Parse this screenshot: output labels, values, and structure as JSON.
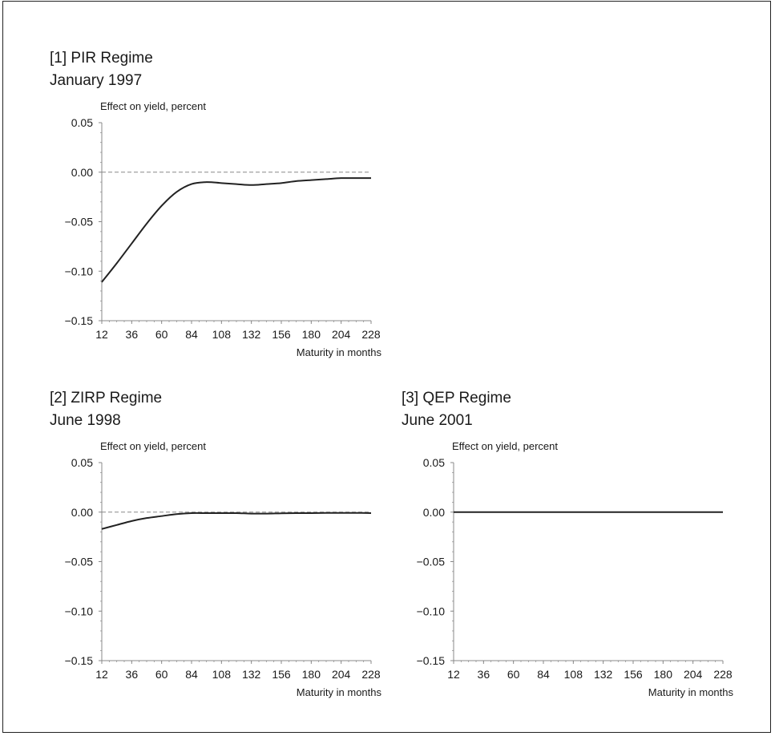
{
  "chart_data": [
    {
      "type": "line",
      "title": "[1] PIR Regime",
      "subtitle": "January 1997",
      "ylabel": "Effect on yield, percent",
      "xlabel": "Maturity in months",
      "xticks": [
        12,
        36,
        60,
        84,
        108,
        132,
        156,
        180,
        204,
        228
      ],
      "xtick_labels": [
        "12",
        "36",
        "60",
        "84",
        "108",
        "132",
        "156",
        "180",
        "204",
        "228"
      ],
      "yticks": [
        0.05,
        0.0,
        -0.05,
        -0.1,
        -0.15
      ],
      "ytick_labels": [
        "0.05",
        "0.00",
        "−0.05",
        "−0.10",
        "−0.15"
      ],
      "xlim": [
        12,
        228
      ],
      "ylim": [
        -0.15,
        0.05
      ],
      "zero_line": "dashed",
      "grid": false,
      "series": [
        {
          "x": [
            12,
            24,
            36,
            48,
            60,
            72,
            84,
            96,
            108,
            120,
            132,
            144,
            156,
            168,
            180,
            192,
            204,
            216,
            228
          ],
          "y": [
            -0.111,
            -0.092,
            -0.072,
            -0.052,
            -0.034,
            -0.02,
            -0.012,
            -0.01,
            -0.011,
            -0.012,
            -0.013,
            -0.012,
            -0.011,
            -0.009,
            -0.008,
            -0.007,
            -0.006,
            -0.006,
            -0.006
          ]
        }
      ]
    },
    {
      "type": "line",
      "title": "[2] ZIRP Regime",
      "subtitle": "June 1998",
      "ylabel": "Effect on yield, percent",
      "xlabel": "Maturity in months",
      "xticks": [
        12,
        36,
        60,
        84,
        108,
        132,
        156,
        180,
        204,
        228
      ],
      "xtick_labels": [
        "12",
        "36",
        "60",
        "84",
        "108",
        "132",
        "156",
        "180",
        "204",
        "228"
      ],
      "yticks": [
        0.05,
        0.0,
        -0.05,
        -0.1,
        -0.15
      ],
      "ytick_labels": [
        "0.05",
        "0.00",
        "−0.05",
        "−0.10",
        "−0.15"
      ],
      "xlim": [
        12,
        228
      ],
      "ylim": [
        -0.15,
        0.05
      ],
      "zero_line": "dashed",
      "grid": false,
      "series": [
        {
          "x": [
            12,
            24,
            36,
            48,
            60,
            72,
            84,
            96,
            108,
            120,
            132,
            144,
            156,
            168,
            180,
            192,
            204,
            216,
            228
          ],
          "y": [
            -0.017,
            -0.013,
            -0.009,
            -0.006,
            -0.004,
            -0.002,
            -0.001,
            -0.001,
            -0.001,
            -0.001,
            -0.0015,
            -0.0015,
            -0.0012,
            -0.001,
            -0.001,
            -0.0008,
            -0.0008,
            -0.0008,
            -0.001
          ]
        }
      ]
    },
    {
      "type": "line",
      "title": "[3] QEP Regime",
      "subtitle": "June 2001",
      "ylabel": "Effect on yield, percent",
      "xlabel": "Maturity in months",
      "xticks": [
        12,
        36,
        60,
        84,
        108,
        132,
        156,
        180,
        204,
        228
      ],
      "xtick_labels": [
        "12",
        "36",
        "60",
        "84",
        "108",
        "132",
        "156",
        "180",
        "204",
        "228"
      ],
      "yticks": [
        0.05,
        0.0,
        -0.05,
        -0.1,
        -0.15
      ],
      "ytick_labels": [
        "0.05",
        "0.00",
        "−0.05",
        "−0.10",
        "−0.15"
      ],
      "xlim": [
        12,
        228
      ],
      "ylim": [
        -0.15,
        0.05
      ],
      "zero_line": "dashed",
      "grid": false,
      "series": [
        {
          "x": [
            12,
            36,
            60,
            84,
            108,
            132,
            156,
            180,
            204,
            228
          ],
          "y": [
            0.0,
            0.0,
            0.0,
            0.0,
            0.0,
            0.0,
            0.0,
            0.0,
            0.0,
            0.0
          ]
        }
      ]
    }
  ],
  "colors": {
    "line": "#222222",
    "axis": "#888888",
    "zero_line": "#888888",
    "frame": "#222222"
  }
}
